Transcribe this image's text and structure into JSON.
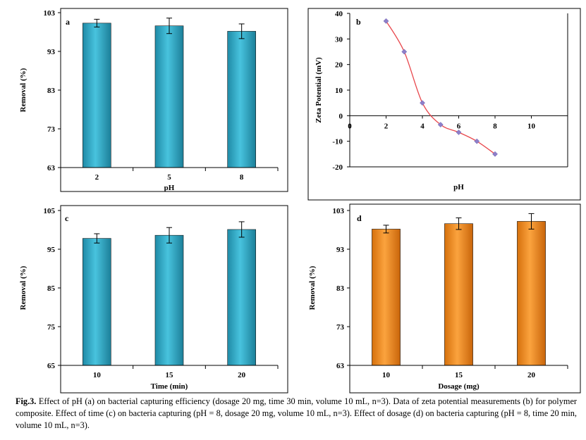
{
  "chart_data": [
    {
      "id": "a",
      "type": "bar",
      "panel_label": "a",
      "xlabel": "pH",
      "ylabel": "Removal (%)",
      "categories": [
        "2",
        "5",
        "8"
      ],
      "values": [
        100.3,
        99.6,
        98.2
      ],
      "errors": [
        1.0,
        2.0,
        1.9
      ],
      "ylim": [
        63,
        103
      ],
      "yticks": [
        63,
        73,
        83,
        93,
        103
      ],
      "color": "#3fb3cf"
    },
    {
      "id": "b",
      "type": "line",
      "panel_label": "b",
      "xlabel": "pH",
      "ylabel": "Zeta Potential (mV)",
      "x": [
        2,
        3,
        4,
        5,
        6,
        7,
        8
      ],
      "y": [
        37,
        25,
        5,
        -3.5,
        -6.5,
        -10,
        -15
      ],
      "xlim": [
        0,
        12
      ],
      "ylim": [
        -20,
        40
      ],
      "xticks": [
        "0",
        "2",
        "4",
        "6",
        "8",
        "10"
      ],
      "yticks": [
        "-20",
        "-10",
        "0",
        "10",
        "20",
        "30",
        "40"
      ],
      "line_color": "#e8474c",
      "marker_color": "#8e7fc9"
    },
    {
      "id": "c",
      "type": "bar",
      "panel_label": "c",
      "xlabel": "Time (min)",
      "ylabel": "Removal (%)",
      "categories": [
        "10",
        "15",
        "20"
      ],
      "values": [
        97.8,
        98.6,
        100.1
      ],
      "errors": [
        1.2,
        2.0,
        2.0
      ],
      "ylim": [
        65,
        105
      ],
      "yticks": [
        65,
        75,
        85,
        95,
        105
      ],
      "color": "#3fb3cf"
    },
    {
      "id": "d",
      "type": "bar",
      "panel_label": "d",
      "xlabel": "Dosage (mg)",
      "ylabel": "Removal (%)",
      "categories": [
        "10",
        "15",
        "20"
      ],
      "values": [
        98.2,
        99.6,
        100.2
      ],
      "errors": [
        1.0,
        1.5,
        2.0
      ],
      "ylim": [
        63,
        103
      ],
      "yticks": [
        63,
        73,
        83,
        93,
        103
      ],
      "color": "#f28a1c"
    }
  ],
  "caption": {
    "lead": "Fig.3.",
    "text": " Effect of pH (a) on bacterial capturing efficiency (dosage 20 mg, time 30 min, volume 10 mL, n=3). Data of zeta potential measurements (b) for polymer composite. Effect of time (c) on bacteria capturing (pH = 8, dosage 20 mg, volume 10 mL, n=3). Effect of dosage (d) on bacteria capturing (pH = 8, time 20 min, volume 10 mL, n=3)."
  }
}
